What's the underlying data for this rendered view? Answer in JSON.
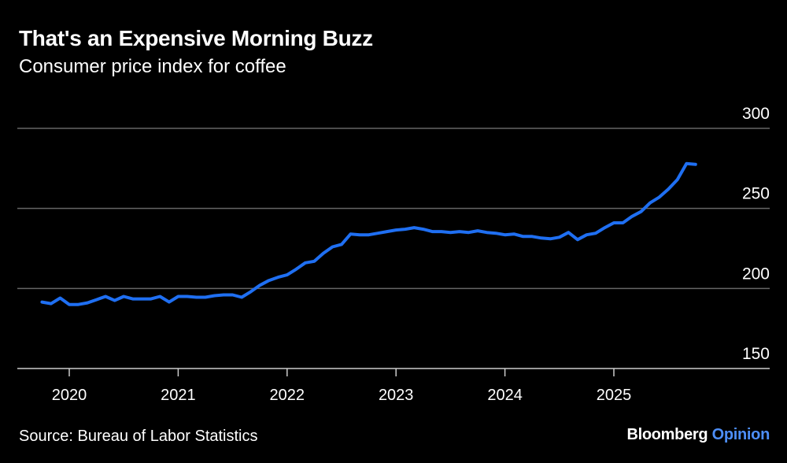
{
  "title": "That's an Expensive Morning Buzz",
  "subtitle": "Consumer price index for coffee",
  "source": "Source: Bureau of Labor Statistics",
  "brand": {
    "name": "Bloomberg",
    "section": "Opinion"
  },
  "colors": {
    "line": "#1f6ff2",
    "grid": "#666666",
    "axis": "#cccccc",
    "brand_accent": "#4d8ef7"
  },
  "chart_data": {
    "type": "line",
    "title": "That's an Expensive Morning Buzz",
    "subtitle": "Consumer price index for coffee",
    "xlabel": "",
    "ylabel": "",
    "ylim": [
      150,
      300
    ],
    "yticks": [
      150,
      200,
      250,
      300
    ],
    "ytick_labels": [
      "150",
      "200",
      "250",
      "300"
    ],
    "xticks": [
      2020,
      2021,
      2022,
      2023,
      2024,
      2025
    ],
    "xtick_labels": [
      "2020",
      "2021",
      "2022",
      "2023",
      "2024",
      "2025"
    ],
    "xlim": [
      2019.7,
      2026.4
    ],
    "grid": true,
    "series": [
      {
        "name": "Coffee CPI",
        "x": [
          2019.75,
          2019.833,
          2019.917,
          2020.0,
          2020.083,
          2020.167,
          2020.25,
          2020.333,
          2020.417,
          2020.5,
          2020.583,
          2020.667,
          2020.75,
          2020.833,
          2020.917,
          2021.0,
          2021.083,
          2021.167,
          2021.25,
          2021.333,
          2021.417,
          2021.5,
          2021.583,
          2021.667,
          2021.75,
          2021.833,
          2021.917,
          2022.0,
          2022.083,
          2022.167,
          2022.25,
          2022.333,
          2022.417,
          2022.5,
          2022.583,
          2022.667,
          2022.75,
          2022.833,
          2022.917,
          2023.0,
          2023.083,
          2023.167,
          2023.25,
          2023.333,
          2023.417,
          2023.5,
          2023.583,
          2023.667,
          2023.75,
          2023.833,
          2023.917,
          2024.0,
          2024.083,
          2024.167,
          2024.25,
          2024.333,
          2024.417,
          2024.5,
          2024.583,
          2024.667,
          2024.75,
          2024.833,
          2024.917,
          2025.0,
          2025.083,
          2025.167,
          2025.25,
          2025.333,
          2025.417,
          2025.5,
          2025.583,
          2025.667,
          2025.75
        ],
        "values": [
          191.5,
          190.5,
          194,
          190,
          190,
          191,
          193,
          195,
          192.5,
          195,
          193.5,
          193.5,
          193.5,
          195,
          191.5,
          195,
          195,
          194.5,
          194.5,
          195.5,
          196,
          196,
          194.5,
          198,
          202,
          205,
          207,
          208.5,
          212,
          216,
          217,
          222,
          226,
          227.5,
          234,
          233.5,
          233.5,
          234.5,
          235.5,
          236.5,
          237,
          238,
          237,
          235.5,
          235.5,
          235,
          235.5,
          235,
          236,
          235,
          234.5,
          233.5,
          234,
          232.5,
          232.5,
          231.5,
          231,
          232,
          235,
          230.5,
          233.5,
          234.5,
          238,
          241,
          241,
          245,
          248,
          253.5,
          257,
          262,
          268,
          278,
          277.5
        ]
      }
    ]
  }
}
